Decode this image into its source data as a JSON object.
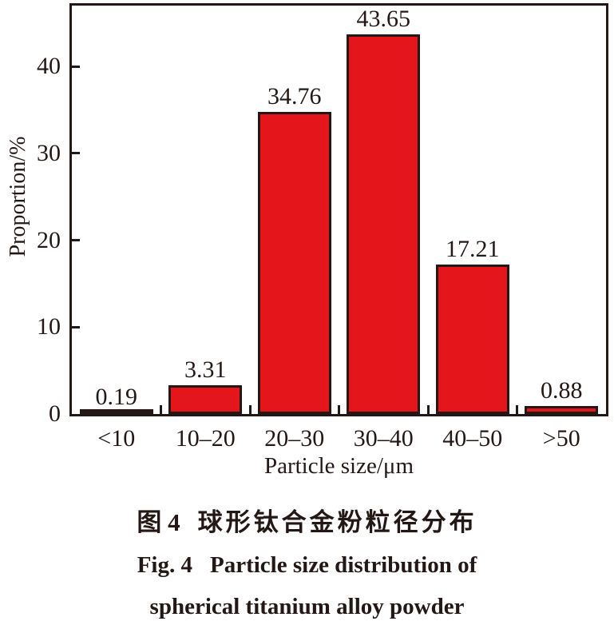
{
  "colors": {
    "ink": "#231815",
    "bar_fill": "#e4151b",
    "bar_edge": "#231815"
  },
  "chart_data": {
    "type": "bar",
    "categories": [
      "<10",
      "10–20",
      "20–30",
      "30–40",
      "40–50",
      ">50"
    ],
    "values": [
      0.19,
      3.31,
      34.76,
      43.65,
      17.21,
      0.88
    ],
    "value_labels": [
      "0.19",
      "3.31",
      "34.76",
      "43.65",
      "17.21",
      "0.88"
    ],
    "title": "",
    "xlabel": "Particle size/μm",
    "ylabel": "Proportion/%",
    "ylim": [
      0,
      47
    ],
    "yticks": [
      0,
      10,
      20,
      30,
      40
    ],
    "grid": false,
    "legend": null,
    "bar_color": "#e4151b",
    "bar_edge_color": "#231815"
  },
  "figure": {
    "caption_cn": {
      "label": "图 4",
      "text": "球形钛合金粉粒径分布"
    },
    "caption_en": {
      "label": "Fig. 4",
      "line1": "Particle size distribution of",
      "line2": "spherical titanium alloy powder"
    }
  }
}
